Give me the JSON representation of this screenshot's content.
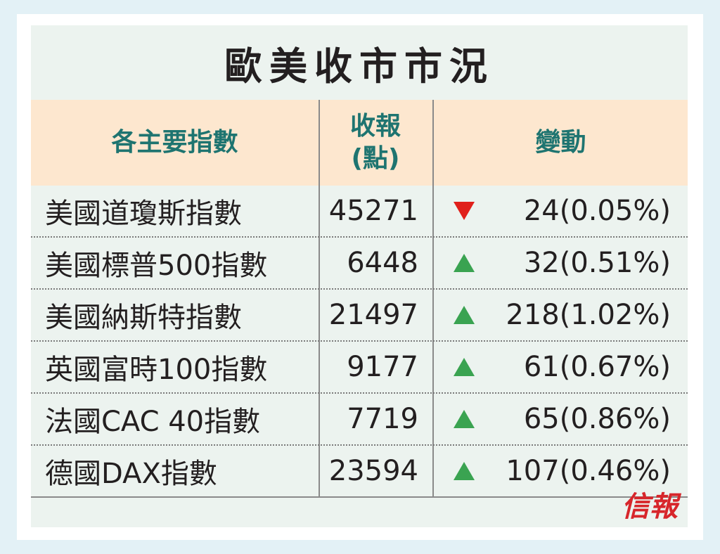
{
  "title": "歐美收市市況",
  "header": {
    "name": "各主要指數",
    "close_line1": "收報",
    "close_line2": "(點)",
    "change": "變動"
  },
  "rows": [
    {
      "name": "美國道瓊斯指數",
      "close": "45271",
      "direction": "down",
      "change": "24(0.05%)"
    },
    {
      "name": "美國標普500指數",
      "close": "6448",
      "direction": "up",
      "change": "32(0.51%)"
    },
    {
      "name": "美國納斯特指數",
      "close": "21497",
      "direction": "up",
      "change": "218(1.02%)"
    },
    {
      "name": "英國富時100指數",
      "close": "9177",
      "direction": "up",
      "change": "61(0.67%)"
    },
    {
      "name": "法國CAC 40指數",
      "close": "7719",
      "direction": "up",
      "change": "65(0.86%)"
    },
    {
      "name": "德國DAX指數",
      "close": "23594",
      "direction": "up",
      "change": "107(0.46%)"
    }
  ],
  "colors": {
    "up": "#3aa351",
    "down": "#e0201b"
  },
  "logo": "信報"
}
